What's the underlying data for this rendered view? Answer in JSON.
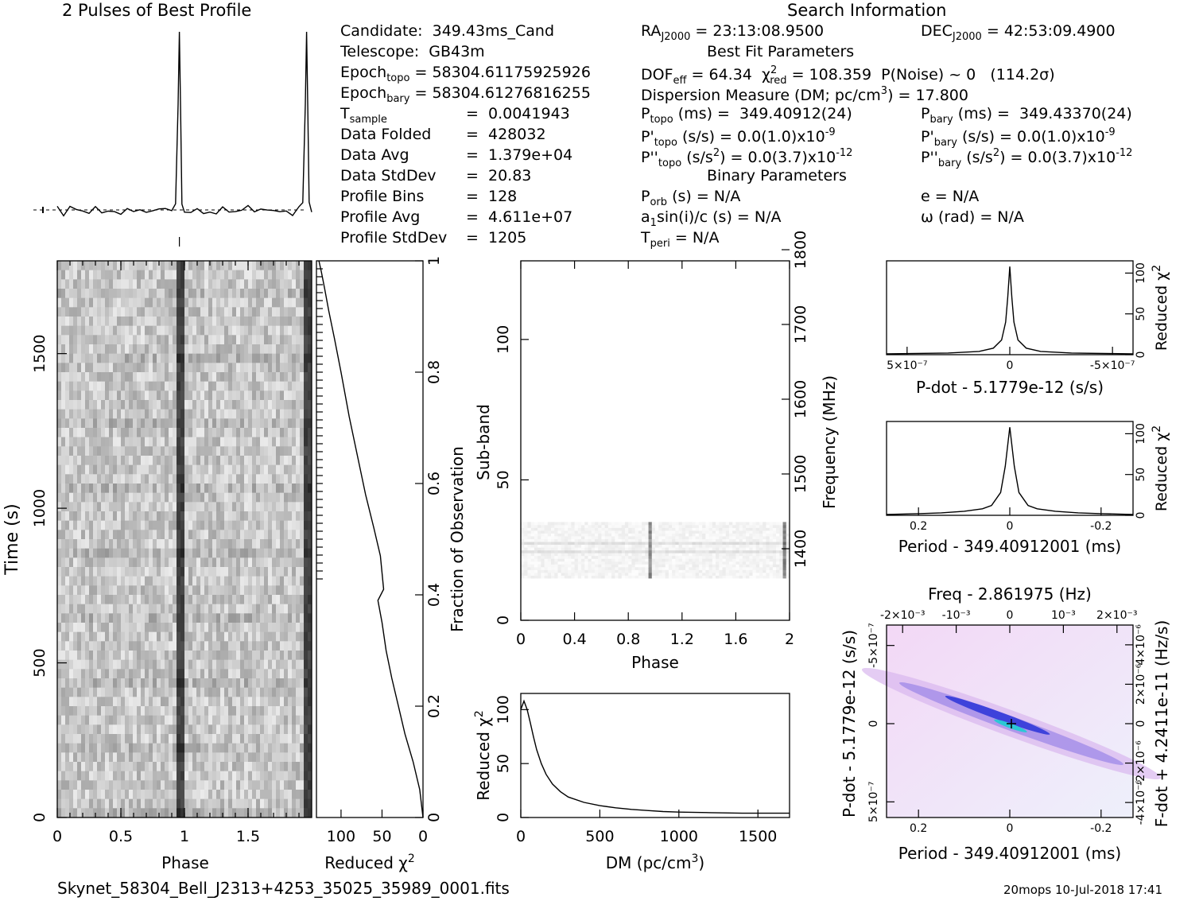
{
  "header": {
    "profile_title": "2 Pulses of Best Profile",
    "search_title": "Search Information"
  },
  "info": {
    "candidate": "Candidate:  349.43ms_Cand",
    "telescope": "Telescope:  GB43m",
    "epoch_topo_label": "Epoch",
    "epoch_topo_sub": "topo",
    "epoch_topo_value": " = 58304.61175925926",
    "epoch_bary_label": "Epoch",
    "epoch_bary_sub": "bary",
    "epoch_bary_value": " = 58304.61276816255",
    "tsample_label": "T",
    "tsample_sub": "sample",
    "tsample_value": "=  0.0041943",
    "data_folded_label": "Data Folded",
    "data_folded_value": "=  428032",
    "data_avg_label": "Data Avg",
    "data_avg_value": "=  1.379e+04",
    "data_std_label": "Data StdDev",
    "data_std_value": "=  20.83",
    "profile_bins_label": "Profile Bins",
    "profile_bins_value": "=  128",
    "profile_avg_label": "Profile Avg",
    "profile_avg_value": "=  4.611e+07",
    "profile_std_label": "Profile StdDev",
    "profile_std_value": "=  1205"
  },
  "search": {
    "ra_label": "RA",
    "ra_sub": "J2000",
    "ra_value": " = 23:13:08.9500",
    "dec_label": "DEC",
    "dec_sub": "J2000",
    "dec_value": " = 42:53:09.4900",
    "best_fit_title": "Best Fit Parameters",
    "dof_label": "DOF",
    "dof_sub": "eff",
    "dof_value": " = 64.34  χ",
    "chi_sup": "2",
    "chi_sub": "red",
    "chi_value": " = 108.359  P(Noise) ~ 0   (114.2σ)",
    "dm_line": "Dispersion Measure (DM; pc/cm",
    "dm_sup": "3",
    "dm_value": ") = 17.800",
    "ptopo_label": "P",
    "ptopo_sub": "topo",
    "ptopo_value": " (ms) =  349.40912(24)",
    "pbary_label": "P",
    "pbary_sub": "bary",
    "pbary_value": " (ms) =  349.43370(24)",
    "pdtopo_label": "P'",
    "pdtopo_sub": "topo",
    "pdtopo_value": " (s/s) = 0.0(1.0)x10",
    "pdtopo_exp": "-9",
    "pdbary_label": "P'",
    "pdbary_sub": "bary",
    "pdbary_value": " (s/s) = 0.0(1.0)x10",
    "pdbary_exp": "-9",
    "pddtopo_label": "P''",
    "pddtopo_sub": "topo",
    "pddtopo_value": " (s/s",
    "pddtopo_sup2": "2",
    "pddtopo_value2": ") = 0.0(3.7)x10",
    "pddtopo_exp": "-12",
    "pddbary_label": "P''",
    "pddbary_sub": "bary",
    "pddbary_value": " (s/s",
    "pddbary_sup2": "2",
    "pddbary_value2": ") = 0.0(3.7)x10",
    "pddbary_exp": "-12",
    "binary_title": "Binary Parameters",
    "porb_label": "P",
    "porb_sub": "orb",
    "porb_value": " (s) = N/A",
    "e_value": "e = N/A",
    "a1_label": "a",
    "a1_sub": "1",
    "a1_value": "sin(i)/c (s) = N/A",
    "omega_value": "ω (rad) = N/A",
    "tperi_label": "T",
    "tperi_sub": "peri",
    "tperi_value": " = N/A"
  },
  "footer": {
    "filename": "Skynet_58304_Bell_J2313+4253_35025_35989_0001.fits",
    "stamp": "20mops 10-Jul-2018 17:41"
  },
  "chart_data": [
    {
      "type": "line",
      "name": "pulse-profile",
      "title": "2 Pulses of Best Profile",
      "x": [
        0.0,
        0.05,
        0.1,
        0.15,
        0.2,
        0.25,
        0.3,
        0.35,
        0.4,
        0.45,
        0.5,
        0.55,
        0.6,
        0.65,
        0.7,
        0.75,
        0.8,
        0.85,
        0.9,
        0.93,
        0.95,
        0.96,
        0.97,
        0.98,
        1.0,
        1.05,
        1.1,
        1.15,
        1.2,
        1.25,
        1.3,
        1.35,
        1.4,
        1.45,
        1.5,
        1.55,
        1.6,
        1.65,
        1.7,
        1.75,
        1.8,
        1.85,
        1.9,
        1.93,
        1.95,
        1.96,
        1.97,
        1.98,
        2.0
      ],
      "values": [
        0.02,
        0.0,
        0.03,
        0.01,
        0.02,
        0.0,
        0.03,
        0.01,
        0.02,
        0.01,
        0.0,
        0.03,
        0.02,
        0.01,
        0.0,
        0.02,
        0.03,
        0.01,
        0.02,
        0.05,
        0.6,
        1.0,
        0.55,
        0.05,
        0.02,
        0.01,
        0.03,
        0.0,
        0.02,
        0.01,
        0.03,
        0.0,
        0.02,
        0.01,
        0.03,
        0.0,
        0.02,
        0.01,
        0.03,
        0.01,
        0.02,
        0.0,
        0.02,
        0.05,
        0.6,
        1.0,
        0.55,
        0.05,
        0.02
      ]
    },
    {
      "type": "heatmap",
      "name": "time-phase",
      "xlabel": "Phase",
      "ylabel": "Time (s)",
      "x_ticks": [
        "0",
        "0.5",
        "1",
        "1.5"
      ],
      "y_ticks": [
        "0",
        "500",
        "1000",
        "1500"
      ],
      "xlim": [
        0,
        2
      ],
      "ylim": [
        0,
        1800
      ],
      "pulse_phases": [
        0.96,
        1.96
      ]
    },
    {
      "type": "line",
      "name": "chi2-vs-time",
      "xlabel": "Reduced χ2",
      "ylabel": "Fraction of Observation",
      "x_ticks": [
        "100",
        "50",
        "0"
      ],
      "y_ticks": [
        "0",
        "0.2",
        "0.4",
        "0.6",
        "0.8",
        "1"
      ],
      "xlim": [
        130,
        0
      ],
      "ylim": [
        0,
        1
      ],
      "x": [
        0,
        4,
        12,
        22,
        30,
        38,
        45,
        50,
        55,
        48,
        52,
        60,
        70,
        80,
        90,
        100,
        108,
        115,
        120,
        124,
        127
      ],
      "y": [
        0.0,
        0.05,
        0.1,
        0.15,
        0.2,
        0.25,
        0.3,
        0.35,
        0.39,
        0.41,
        0.47,
        0.52,
        0.58,
        0.65,
        0.72,
        0.8,
        0.86,
        0.91,
        0.95,
        0.98,
        1.0
      ]
    },
    {
      "type": "heatmap",
      "name": "subband-phase",
      "xlabel": "Phase",
      "ylabel": "Sub-band",
      "y2label": "Frequency (MHz)",
      "x_ticks": [
        "0",
        "0.4",
        "0.8",
        "1.2",
        "1.6",
        "2"
      ],
      "y_ticks": [
        "0",
        "50",
        "100"
      ],
      "y2_ticks": [
        "1400",
        "1500",
        "1600",
        "1700",
        "1800"
      ],
      "xlim": [
        0,
        2
      ],
      "ylim": [
        0,
        128
      ],
      "occupied_subbands": [
        15,
        35
      ],
      "pulse_phases": [
        0.96,
        1.96
      ]
    },
    {
      "type": "line",
      "name": "chi2-vs-dm",
      "xlabel": "DM (pc/cm3)",
      "ylabel": "Reduced χ2",
      "x_ticks": [
        "0",
        "500",
        "1000",
        "1500"
      ],
      "y_ticks": [
        "0",
        "50",
        "100"
      ],
      "xlim": [
        0,
        1700
      ],
      "ylim": [
        0,
        115
      ],
      "x": [
        0,
        20,
        40,
        60,
        80,
        100,
        130,
        160,
        200,
        250,
        300,
        400,
        500,
        600,
        700,
        800,
        900,
        1000,
        1200,
        1400,
        1600,
        1700
      ],
      "values": [
        100,
        108,
        100,
        88,
        75,
        63,
        50,
        40,
        31,
        24,
        19,
        14,
        11,
        9,
        7.5,
        6.5,
        5.5,
        5,
        4.5,
        4,
        4,
        4
      ]
    },
    {
      "type": "line",
      "name": "chi2-vs-pdot",
      "xlabel": "P-dot - 5.1779e-12 (s/s)",
      "ylabel": "Reduced χ2",
      "x_ticks": [
        "5x10-7",
        "0",
        "-5x10-7"
      ],
      "y_ticks": [
        "0",
        "50",
        "100"
      ],
      "xlim": [
        6e-07,
        -6e-07
      ],
      "ylim": [
        0,
        115
      ],
      "x": [
        6e-07,
        3e-07,
        1.5e-07,
        8e-08,
        4e-08,
        2e-08,
        1e-08,
        0,
        -1e-08,
        -2e-08,
        -4e-08,
        -8e-08,
        -1.5e-07,
        -3e-07,
        -6e-07
      ],
      "values": [
        1,
        2,
        4,
        8,
        18,
        40,
        70,
        108,
        70,
        40,
        18,
        8,
        4,
        2,
        1
      ]
    },
    {
      "type": "line",
      "name": "chi2-vs-period",
      "xlabel": "Period - 349.40912001 (ms)",
      "ylabel": "Reduced χ2",
      "x_ticks": [
        "0.2",
        "0",
        "-0.2"
      ],
      "y_ticks": [
        "0",
        "50",
        "100"
      ],
      "xlim": [
        0.27,
        -0.27
      ],
      "ylim": [
        0,
        115
      ],
      "x": [
        0.27,
        0.2,
        0.15,
        0.1,
        0.06,
        0.04,
        0.02,
        0.01,
        0,
        -0.01,
        -0.02,
        -0.04,
        -0.06,
        -0.1,
        -0.15,
        -0.2,
        -0.27
      ],
      "values": [
        1,
        2,
        3,
        5,
        8,
        12,
        28,
        60,
        108,
        60,
        28,
        12,
        8,
        5,
        3,
        2,
        1
      ]
    },
    {
      "type": "heatmap",
      "name": "period-pdot",
      "title": "Freq - 2.861975 (Hz)",
      "xlabel": "Period - 349.40912001 (ms)",
      "ylabel": "P-dot - 5.1779e-12 (s/s)",
      "y2label": "F-dot + 4.2411e-11 (Hz/s)",
      "x_ticks": [
        "0.2",
        "0",
        "-0.2"
      ],
      "x2_ticks": [
        "-2x10-3",
        "-10-3",
        "0",
        "10-3",
        "2x10-3"
      ],
      "y_ticks": [
        "5x10-7",
        "0",
        "-5x10-7"
      ],
      "y2_ticks": [
        "-4x10-6",
        "-2x10-6",
        "0",
        "2x10-6",
        "4x10-6"
      ],
      "best_fit": [
        0,
        0
      ]
    }
  ]
}
